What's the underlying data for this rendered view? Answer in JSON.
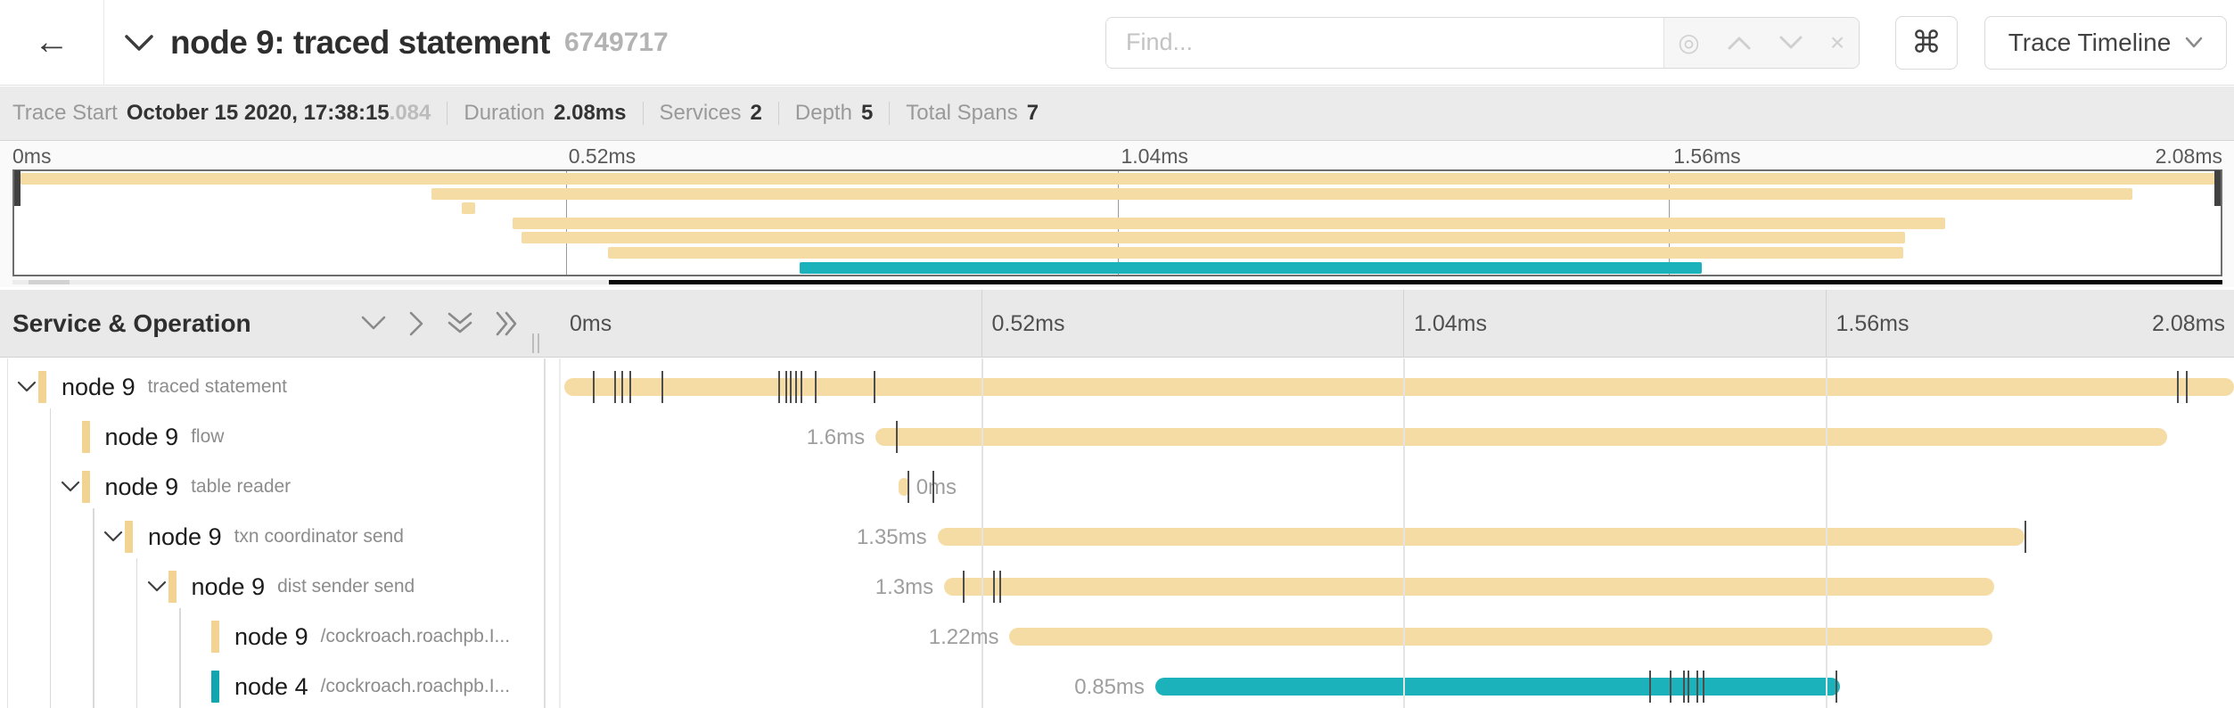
{
  "header": {
    "back_icon": "←",
    "title": "node 9: traced statement",
    "trace_id": "6749717",
    "find": {
      "placeholder": "Find...",
      "tools": [
        "locate",
        "previous",
        "next",
        "clear"
      ],
      "locate_glyph": "◎",
      "clear_glyph": "×"
    },
    "shortcut_button_label": "⌘",
    "view_button_label": "Trace Timeline"
  },
  "summary": {
    "items": [
      {
        "label": "Trace Start",
        "value": "October 15 2020, 17:38:15",
        "suffix": ".084"
      },
      {
        "label": "Duration",
        "value": "2.08ms",
        "suffix": ""
      },
      {
        "label": "Services",
        "value": "2",
        "suffix": ""
      },
      {
        "label": "Depth",
        "value": "5",
        "suffix": ""
      },
      {
        "label": "Total Spans",
        "value": "7",
        "suffix": ""
      }
    ]
  },
  "timeline": {
    "tick_labels": [
      "0ms",
      "0.52ms",
      "1.04ms",
      "1.56ms",
      "2.08ms"
    ],
    "tick_positions_pct": [
      0,
      25,
      50,
      75,
      100
    ],
    "left_header_title": "Service & Operation",
    "duration_total": "2.08ms"
  },
  "colors": {
    "tan": "#F5DCA4",
    "tan_swatch": "#F2D392",
    "teal": "#1BB2BB",
    "teal_swatch": "#11A6AF",
    "tick_mark": "#4d4d4d"
  },
  "spans": [
    {
      "service": "node 9",
      "operation": "traced statement",
      "depth": 0,
      "expandable": true,
      "color": "tan",
      "start_pct": 0.3,
      "end_pct": 100,
      "duration_label": "",
      "label_side": "none",
      "tick_marks_pct": [
        2.0,
        3.3,
        3.7,
        4.2,
        6.1,
        13.1,
        13.5,
        13.8,
        14.1,
        14.4,
        15.3,
        18.8,
        96.6,
        97.1
      ]
    },
    {
      "service": "node 9",
      "operation": "flow",
      "depth": 1,
      "expandable": false,
      "color": "tan",
      "start_pct": 18.9,
      "end_pct": 96.0,
      "duration_label": "1.6ms",
      "label_side": "left",
      "tick_marks_pct": [
        20.1
      ]
    },
    {
      "service": "node 9",
      "operation": "table reader",
      "depth": 1,
      "expandable": true,
      "color": "tan",
      "start_pct": 20.3,
      "end_pct": 20.9,
      "duration_label": "0ms",
      "label_side": "right",
      "tick_marks_pct": [
        20.8,
        22.3
      ]
    },
    {
      "service": "node 9",
      "operation": "txn coordinator send",
      "depth": 2,
      "expandable": true,
      "color": "tan",
      "start_pct": 22.6,
      "end_pct": 87.5,
      "duration_label": "1.35ms",
      "label_side": "left",
      "tick_marks_pct": [
        87.5
      ]
    },
    {
      "service": "node 9",
      "operation": "dist sender send",
      "depth": 3,
      "expandable": true,
      "color": "tan",
      "start_pct": 23.0,
      "end_pct": 85.7,
      "duration_label": "1.3ms",
      "label_side": "left",
      "tick_marks_pct": [
        24.1,
        25.9,
        26.3
      ]
    },
    {
      "service": "node 9",
      "operation": "/cockroach.roachpb.I...",
      "depth": 4,
      "expandable": false,
      "color": "tan",
      "start_pct": 26.9,
      "end_pct": 85.6,
      "duration_label": "1.22ms",
      "label_side": "left",
      "tick_marks_pct": []
    },
    {
      "service": "node 4",
      "operation": "/cockroach.roachpb.I...",
      "depth": 4,
      "expandable": false,
      "color": "teal",
      "start_pct": 35.6,
      "end_pct": 76.5,
      "duration_label": "0.85ms",
      "label_side": "left",
      "tick_marks_pct": [
        65.1,
        66.3,
        67.1,
        67.4,
        67.9,
        68.3,
        76.2
      ]
    }
  ],
  "minimap": {
    "grid_positions_pct": [
      25,
      50,
      75
    ],
    "scroll_black_start_pct": 27
  }
}
